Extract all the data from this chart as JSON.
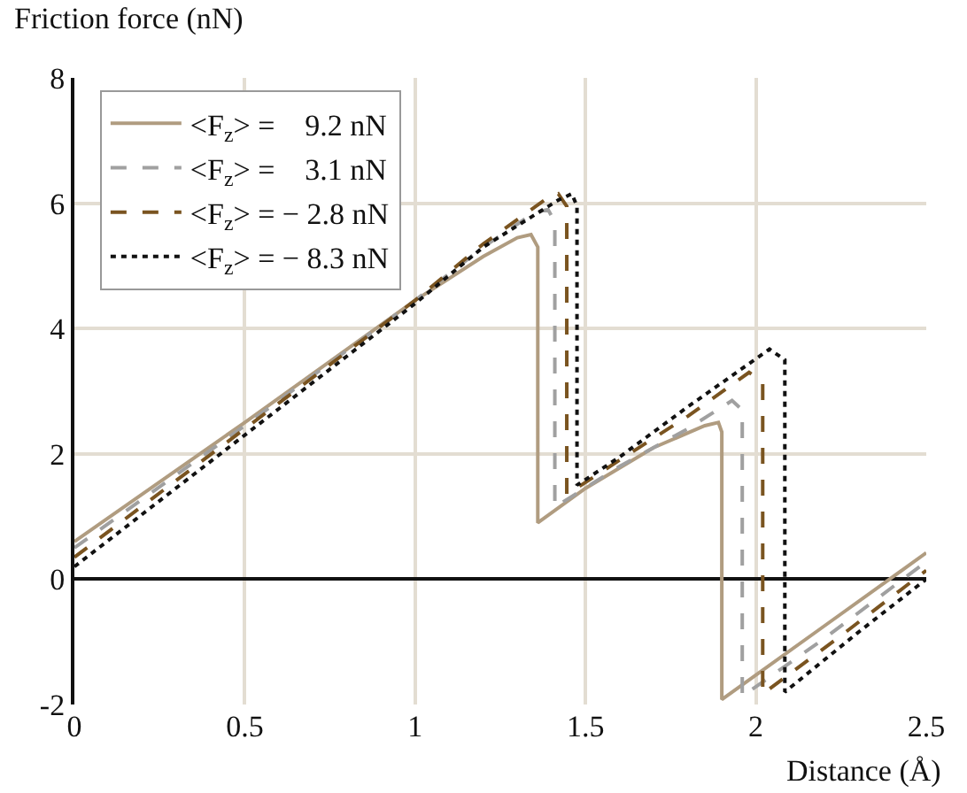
{
  "chart_data": {
    "type": "line",
    "xlabel": "Distance (Å)",
    "ylabel": "Friction force (nN)",
    "xlim": [
      0,
      2.5
    ],
    "xticks": [
      0,
      0.5,
      1,
      1.5,
      2,
      2.5
    ],
    "ylim": [
      -2,
      8
    ],
    "yticks": [
      -2,
      0,
      2,
      4,
      6,
      8
    ],
    "grid": true,
    "legend": "top left",
    "marker": "none",
    "series": [
      {
        "name": "<F$_{z}$> =    9.2 nN",
        "color": "#b09c80",
        "line_style": "solid",
        "x": [
          0,
          0.5,
          1,
          1.2,
          1.3,
          1.34,
          1.36,
          1.36,
          1.5,
          1.7,
          1.85,
          1.89,
          1.9,
          1.9,
          2.2,
          2.5
        ],
        "values": [
          0.6,
          2.5,
          4.45,
          5.15,
          5.45,
          5.5,
          5.3,
          0.9,
          1.45,
          2.1,
          2.45,
          2.5,
          2.35,
          -1.92,
          -0.75,
          0.42
        ]
      },
      {
        "name": "<F$_{z}$> =    3.1 nN",
        "color": "#a0a0a0",
        "line_style": "dashed",
        "x": [
          0,
          0.5,
          1,
          1.2,
          1.35,
          1.39,
          1.41,
          1.41,
          1.6,
          1.8,
          1.93,
          1.96,
          1.96,
          2.2,
          2.5
        ],
        "values": [
          0.5,
          2.45,
          4.45,
          5.3,
          5.85,
          5.9,
          5.7,
          1.15,
          1.8,
          2.4,
          2.85,
          2.7,
          -1.87,
          -0.95,
          0.28
        ]
      },
      {
        "name": "<F$_{z}$> = − 2.8 nN",
        "color": "#7a5420",
        "line_style": "dashed",
        "x": [
          0,
          0.5,
          1,
          1.2,
          1.38,
          1.42,
          1.445,
          1.445,
          1.6,
          1.8,
          1.98,
          2.02,
          2.02,
          2.25,
          2.5
        ],
        "values": [
          0.35,
          2.4,
          4.45,
          5.35,
          6.05,
          6.15,
          5.95,
          1.35,
          1.9,
          2.6,
          3.3,
          3.15,
          -1.83,
          -0.9,
          0.14
        ]
      },
      {
        "name": "<F$_{z}$> = − 8.3 nN",
        "color": "#111111",
        "line_style": "dotted",
        "x": [
          0,
          0.5,
          1,
          1.2,
          1.42,
          1.46,
          1.475,
          1.475,
          1.6,
          1.8,
          2.04,
          2.085,
          2.085,
          2.3,
          2.5
        ],
        "values": [
          0.2,
          2.3,
          4.4,
          5.3,
          6.05,
          6.15,
          5.95,
          1.5,
          1.95,
          2.75,
          3.67,
          3.5,
          -1.8,
          -0.85,
          0.0
        ]
      }
    ]
  }
}
